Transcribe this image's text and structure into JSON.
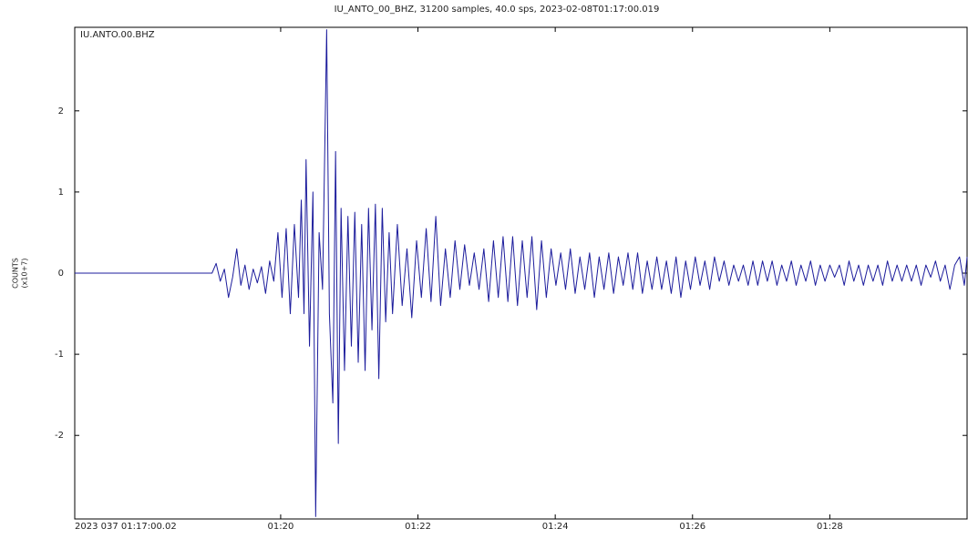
{
  "chart_data": {
    "type": "line",
    "title": "IU_ANTO_00_BHZ, 31200 samples, 40.0 sps, 2023-02-08T01:17:00.019",
    "station_label": "IU.ANTO.00.BHZ",
    "ylabel": [
      "COUNTS",
      "(x10+7)"
    ],
    "color": "#1c1c9c",
    "xlim": [
      0,
      13
    ],
    "ylim": [
      -3.03,
      3.03
    ],
    "xticks": [
      {
        "value": 0,
        "label": "2023 037 01:17:00.02"
      },
      {
        "value": 3,
        "label": "01:20"
      },
      {
        "value": 5,
        "label": "01:22"
      },
      {
        "value": 7,
        "label": "01:24"
      },
      {
        "value": 9,
        "label": "01:26"
      },
      {
        "value": 11,
        "label": "01:28"
      }
    ],
    "yticks": [
      -2,
      -1,
      0,
      1,
      2
    ],
    "x": [
      0,
      2.0,
      2.06,
      2.12,
      2.18,
      2.24,
      2.3,
      2.36,
      2.42,
      2.48,
      2.54,
      2.6,
      2.66,
      2.72,
      2.78,
      2.84,
      2.9,
      2.96,
      3.02,
      3.08,
      3.14,
      3.2,
      3.26,
      3.3,
      3.34,
      3.37,
      3.42,
      3.47,
      3.51,
      3.56,
      3.61,
      3.67,
      3.71,
      3.76,
      3.8,
      3.84,
      3.88,
      3.93,
      3.98,
      4.03,
      4.08,
      4.13,
      4.18,
      4.23,
      4.28,
      4.33,
      4.38,
      4.43,
      4.48,
      4.53,
      4.58,
      4.63,
      4.7,
      4.77,
      4.84,
      4.91,
      4.98,
      5.05,
      5.12,
      5.19,
      5.26,
      5.33,
      5.4,
      5.47,
      5.54,
      5.61,
      5.68,
      5.75,
      5.82,
      5.89,
      5.96,
      6.03,
      6.1,
      6.17,
      6.24,
      6.31,
      6.38,
      6.45,
      6.52,
      6.59,
      6.66,
      6.73,
      6.8,
      6.87,
      6.94,
      7.01,
      7.08,
      7.15,
      7.22,
      7.29,
      7.36,
      7.43,
      7.5,
      7.57,
      7.64,
      7.71,
      7.78,
      7.85,
      7.92,
      7.99,
      8.06,
      8.13,
      8.2,
      8.27,
      8.34,
      8.41,
      8.48,
      8.55,
      8.62,
      8.69,
      8.76,
      8.83,
      8.9,
      8.97,
      9.04,
      9.11,
      9.18,
      9.25,
      9.32,
      9.39,
      9.46,
      9.53,
      9.6,
      9.67,
      9.74,
      9.81,
      9.88,
      9.95,
      10.02,
      10.09,
      10.16,
      10.23,
      10.3,
      10.37,
      10.44,
      10.51,
      10.58,
      10.65,
      10.72,
      10.79,
      10.86,
      10.93,
      11.0,
      11.07,
      11.14,
      11.21,
      11.28,
      11.35,
      11.42,
      11.49,
      11.56,
      11.63,
      11.7,
      11.77,
      11.84,
      11.91,
      11.98,
      12.05,
      12.12,
      12.19,
      12.26,
      12.33,
      12.4,
      12.47,
      12.54,
      12.61,
      12.68,
      12.75,
      12.82,
      12.89,
      12.96,
      13.0
    ],
    "values": [
      0,
      0,
      0.12,
      -0.1,
      0.05,
      -0.3,
      -0.05,
      0.3,
      -0.15,
      0.1,
      -0.2,
      0.05,
      -0.12,
      0.08,
      -0.25,
      0.15,
      -0.1,
      0.5,
      -0.3,
      0.55,
      -0.5,
      0.6,
      -0.3,
      0.9,
      -0.5,
      1.4,
      -0.9,
      1.0,
      -3.0,
      0.5,
      -0.2,
      3.0,
      -0.5,
      -1.6,
      1.5,
      -2.1,
      0.8,
      -1.2,
      0.7,
      -0.9,
      0.75,
      -1.1,
      0.6,
      -1.2,
      0.8,
      -0.7,
      0.85,
      -1.3,
      0.8,
      -0.6,
      0.5,
      -0.5,
      0.6,
      -0.4,
      0.3,
      -0.55,
      0.4,
      -0.3,
      0.55,
      -0.35,
      0.7,
      -0.4,
      0.3,
      -0.3,
      0.4,
      -0.2,
      0.35,
      -0.15,
      0.25,
      -0.2,
      0.3,
      -0.35,
      0.4,
      -0.3,
      0.45,
      -0.35,
      0.45,
      -0.4,
      0.4,
      -0.3,
      0.45,
      -0.45,
      0.4,
      -0.3,
      0.3,
      -0.15,
      0.25,
      -0.2,
      0.3,
      -0.25,
      0.2,
      -0.2,
      0.25,
      -0.3,
      0.2,
      -0.2,
      0.25,
      -0.25,
      0.2,
      -0.15,
      0.25,
      -0.2,
      0.25,
      -0.25,
      0.15,
      -0.2,
      0.2,
      -0.2,
      0.15,
      -0.25,
      0.2,
      -0.3,
      0.15,
      -0.2,
      0.2,
      -0.15,
      0.15,
      -0.2,
      0.2,
      -0.1,
      0.15,
      -0.15,
      0.1,
      -0.1,
      0.1,
      -0.15,
      0.15,
      -0.15,
      0.15,
      -0.1,
      0.15,
      -0.15,
      0.1,
      -0.1,
      0.15,
      -0.15,
      0.1,
      -0.1,
      0.15,
      -0.15,
      0.1,
      -0.1,
      0.1,
      -0.05,
      0.1,
      -0.15,
      0.15,
      -0.1,
      0.1,
      -0.15,
      0.1,
      -0.1,
      0.1,
      -0.15,
      0.15,
      -0.1,
      0.1,
      -0.1,
      0.1,
      -0.1,
      0.1,
      -0.15,
      0.1,
      -0.05,
      0.15,
      -0.1,
      0.1,
      -0.2,
      0.1,
      0.2,
      -0.15,
      0.2
    ]
  }
}
